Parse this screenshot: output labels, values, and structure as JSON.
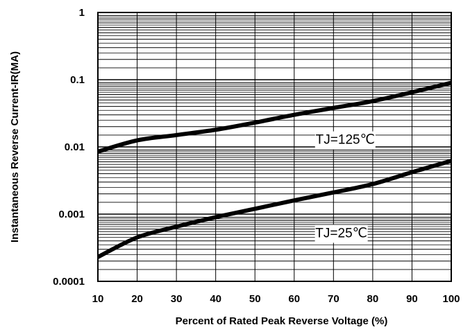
{
  "chart_data": {
    "type": "line",
    "xlabel": "Percent of Rated Peak Reverse Voltage (%)",
    "ylabel": "Instantaneous Reverse Current-IR(MA)",
    "xlim": [
      10,
      100
    ],
    "ylim": [
      0.0001,
      1
    ],
    "yscale": "log",
    "grid": true,
    "x_ticks": [
      "10",
      "20",
      "30",
      "40",
      "50",
      "60",
      "70",
      "80",
      "90",
      "100"
    ],
    "y_ticks": [
      "0.0001",
      "0.001",
      "0.01",
      "0.1",
      "1"
    ],
    "x": [
      10,
      20,
      30,
      40,
      50,
      60,
      70,
      80,
      90,
      100
    ],
    "series": [
      {
        "values": [
          0.0085,
          0.0125,
          0.015,
          0.018,
          0.023,
          0.03,
          0.038,
          0.048,
          0.065,
          0.09
        ]
      },
      {
        "values": [
          0.00023,
          0.00045,
          0.00065,
          0.0009,
          0.0012,
          0.0016,
          0.0021,
          0.0028,
          0.0042,
          0.0062
        ]
      }
    ],
    "annotations": [
      {
        "text": "TJ=125℃",
        "x": 73,
        "y": 0.0125
      },
      {
        "text": "TJ=25℃",
        "x": 72,
        "y": 0.00051
      }
    ]
  }
}
